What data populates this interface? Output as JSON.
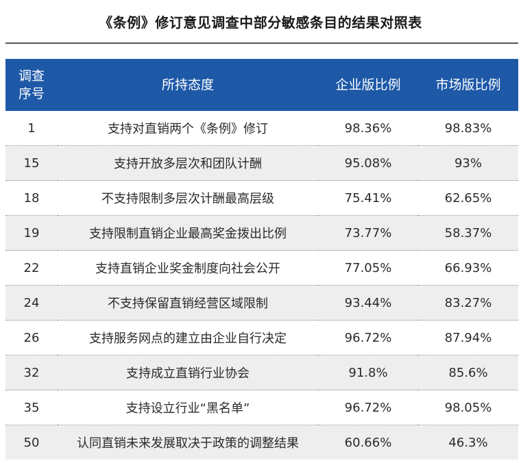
{
  "title": "《条例》修订意见调查中部分敏感条目的结果对照表",
  "headers": {
    "id_line1": "调查",
    "id_line2": "序号",
    "attitude": "所持态度",
    "enterprise": "企业版比例",
    "market": "市场版比例"
  },
  "rows": [
    {
      "id": "1",
      "attitude": "支持对直销两个《条例》修订",
      "enterprise": "98.36%",
      "market": "98.83%"
    },
    {
      "id": "15",
      "attitude": "支持开放多层次和团队计酬",
      "enterprise": "95.08%",
      "market": "93%"
    },
    {
      "id": "18",
      "attitude": "不支持限制多层次计酬最高层级",
      "enterprise": "75.41%",
      "market": "62.65%"
    },
    {
      "id": "19",
      "attitude": "支持限制直销企业最高奖金拨出比例",
      "enterprise": "73.77%",
      "market": "58.37%"
    },
    {
      "id": "22",
      "attitude": "支持直销企业奖金制度向社会公开",
      "enterprise": "77.05%",
      "market": "66.93%"
    },
    {
      "id": "24",
      "attitude": "不支持保留直销经营区域限制",
      "enterprise": "93.44%",
      "market": "83.27%"
    },
    {
      "id": "26",
      "attitude": "支持服务网点的建立由企业自行决定",
      "enterprise": "96.72%",
      "market": "87.94%"
    },
    {
      "id": "32",
      "attitude": "支持成立直销行业协会",
      "enterprise": "91.8%",
      "market": "85.6%"
    },
    {
      "id": "35",
      "attitude": "支持设立行业“黑名单”",
      "enterprise": "96.72%",
      "market": "98.05%"
    },
    {
      "id": "50",
      "attitude": "认同直销未来发展取决于政策的调整结果",
      "enterprise": "60.66%",
      "market": "46.3%"
    }
  ]
}
